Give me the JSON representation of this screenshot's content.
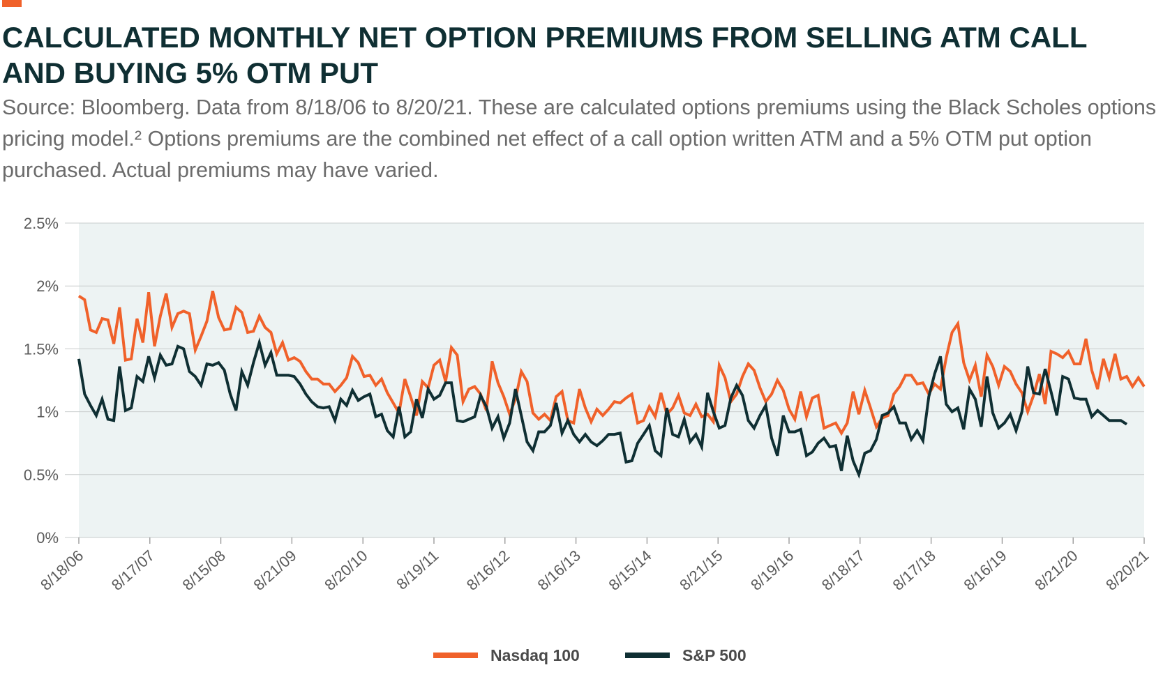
{
  "header": {
    "title": "CALCULATED MONTHLY NET OPTION PREMIUMS FROM SELLING ATM CALL AND BUYING 5% OTM PUT",
    "subtitle": "Source: Bloomberg. Data from 8/18/06 to 8/20/21. These are calculated options premiums using the Black Scholes options pricing model.² Options premiums are the combined net effect of a call option written ATM and a 5% OTM put option purchased. Actual premiums may have varied."
  },
  "colors": {
    "nasdaq": "#f0612a",
    "sp500": "#0f2f33",
    "plot_bg": "#edf3f3",
    "grid": "#c8cccc",
    "accent": "#f0612a"
  },
  "chart_data": {
    "type": "line",
    "title": "CALCULATED MONTHLY NET OPTION PREMIUMS FROM SELLING ATM CALL AND BUYING 5% OTM PUT",
    "xlabel": "",
    "ylabel": "",
    "ylim": [
      0,
      2.5
    ],
    "yticks": [
      "0%",
      "0.5%",
      "1%",
      "1.5%",
      "2%",
      "2.5%"
    ],
    "ytick_values": [
      0,
      0.5,
      1,
      1.5,
      2,
      2.5
    ],
    "x_tick_labels": [
      "8/18/06",
      "8/17/07",
      "8/15/08",
      "8/21/09",
      "8/20/10",
      "8/19/11",
      "8/16/12",
      "8/16/13",
      "8/15/14",
      "8/21/15",
      "8/19/16",
      "8/18/17",
      "8/17/18",
      "8/16/19",
      "8/21/20",
      "8/20/21"
    ],
    "grid": "horizontal",
    "legend_position": "bottom",
    "series": [
      {
        "name": "Nasdaq 100",
        "color": "#f0612a",
        "values": [
          1.92,
          1.89,
          1.65,
          1.63,
          1.74,
          1.73,
          1.54,
          1.83,
          1.41,
          1.42,
          1.74,
          1.55,
          1.95,
          1.52,
          1.76,
          1.94,
          1.67,
          1.78,
          1.8,
          1.78,
          1.49,
          1.6,
          1.72,
          1.96,
          1.75,
          1.65,
          1.66,
          1.83,
          1.79,
          1.63,
          1.64,
          1.76,
          1.67,
          1.63,
          1.46,
          1.55,
          1.41,
          1.43,
          1.4,
          1.32,
          1.26,
          1.26,
          1.22,
          1.22,
          1.16,
          1.21,
          1.27,
          1.44,
          1.39,
          1.28,
          1.29,
          1.21,
          1.26,
          1.15,
          1.07,
          0.99,
          1.26,
          1.12,
          0.97,
          1.24,
          1.19,
          1.37,
          1.41,
          1.24,
          1.51,
          1.45,
          1.08,
          1.18,
          1.2,
          1.14,
          1.01,
          1.4,
          1.23,
          1.12,
          0.98,
          1.1,
          1.32,
          1.24,
          0.99,
          0.94,
          0.98,
          0.93,
          1.12,
          1.16,
          0.93,
          0.91,
          1.18,
          1.03,
          0.92,
          1.02,
          0.97,
          1.02,
          1.08,
          1.07,
          1.11,
          1.14,
          0.91,
          0.93,
          1.04,
          0.96,
          1.15,
          0.98,
          1.03,
          1.13,
          0.99,
          0.97,
          1.06,
          0.96,
          0.98,
          0.92,
          1.37,
          1.27,
          1.08,
          1.14,
          1.28,
          1.38,
          1.33,
          1.19,
          1.08,
          1.14,
          1.25,
          1.17,
          1.02,
          0.94,
          1.16,
          0.96,
          1.11,
          1.13,
          0.87,
          0.89,
          0.91,
          0.83,
          0.91,
          1.16,
          0.98,
          1.17,
          1.03,
          0.88,
          0.95,
          0.97,
          1.14,
          1.2,
          1.29,
          1.29,
          1.22,
          1.23,
          1.14,
          1.22,
          1.18,
          1.43,
          1.63,
          1.7,
          1.39,
          1.25,
          1.37,
          1.12,
          1.45,
          1.36,
          1.21,
          1.36,
          1.32,
          1.22,
          1.15,
          1.0,
          1.13,
          1.3,
          1.06,
          1.48,
          1.46,
          1.43,
          1.48,
          1.38,
          1.38,
          1.58,
          1.33,
          1.18,
          1.42,
          1.27,
          1.46,
          1.26,
          1.28,
          1.2,
          1.27,
          1.2
        ]
      },
      {
        "name": "S&P 500",
        "color": "#0f2f33",
        "values": [
          1.42,
          1.14,
          1.05,
          0.97,
          1.1,
          0.94,
          0.93,
          1.36,
          1.01,
          1.03,
          1.28,
          1.24,
          1.44,
          1.27,
          1.45,
          1.37,
          1.38,
          1.52,
          1.5,
          1.32,
          1.28,
          1.21,
          1.38,
          1.37,
          1.39,
          1.33,
          1.14,
          1.01,
          1.32,
          1.21,
          1.39,
          1.55,
          1.37,
          1.47,
          1.29,
          1.29,
          1.29,
          1.28,
          1.22,
          1.14,
          1.08,
          1.04,
          1.03,
          1.04,
          0.93,
          1.1,
          1.05,
          1.17,
          1.09,
          1.12,
          1.14,
          0.96,
          0.98,
          0.85,
          0.8,
          1.04,
          0.8,
          0.84,
          1.1,
          0.95,
          1.18,
          1.1,
          1.13,
          1.23,
          1.23,
          0.93,
          0.92,
          0.94,
          0.96,
          1.13,
          1.04,
          0.87,
          0.96,
          0.79,
          0.91,
          1.18,
          0.97,
          0.76,
          0.69,
          0.84,
          0.84,
          0.89,
          1.07,
          0.83,
          0.93,
          0.82,
          0.76,
          0.82,
          0.76,
          0.73,
          0.77,
          0.82,
          0.82,
          0.83,
          0.6,
          0.61,
          0.75,
          0.82,
          0.89,
          0.69,
          0.65,
          1.03,
          0.82,
          0.8,
          0.94,
          0.76,
          0.82,
          0.72,
          1.15,
          1.0,
          0.87,
          0.89,
          1.11,
          1.21,
          1.13,
          0.93,
          0.87,
          0.97,
          1.05,
          0.79,
          0.65,
          0.97,
          0.84,
          0.84,
          0.86,
          0.65,
          0.68,
          0.75,
          0.79,
          0.72,
          0.73,
          0.53,
          0.81,
          0.61,
          0.5,
          0.67,
          0.69,
          0.78,
          0.97,
          0.99,
          1.04,
          0.91,
          0.91,
          0.78,
          0.85,
          0.77,
          1.12,
          1.3,
          1.44,
          1.06,
          1.0,
          1.03,
          0.86,
          1.18,
          1.1,
          0.88,
          1.28,
          0.99,
          0.87,
          0.91,
          0.98,
          0.85,
          1.0,
          1.36,
          1.15,
          1.14,
          1.34,
          1.16,
          0.97,
          1.28,
          1.26,
          1.11,
          1.1,
          1.1,
          0.96,
          1.01,
          0.97,
          0.93,
          0.93,
          0.93,
          0.9
        ]
      }
    ]
  },
  "legend": {
    "items": [
      {
        "label": "Nasdaq 100",
        "color": "#f0612a"
      },
      {
        "label": "S&P 500",
        "color": "#0f2f33"
      }
    ]
  }
}
